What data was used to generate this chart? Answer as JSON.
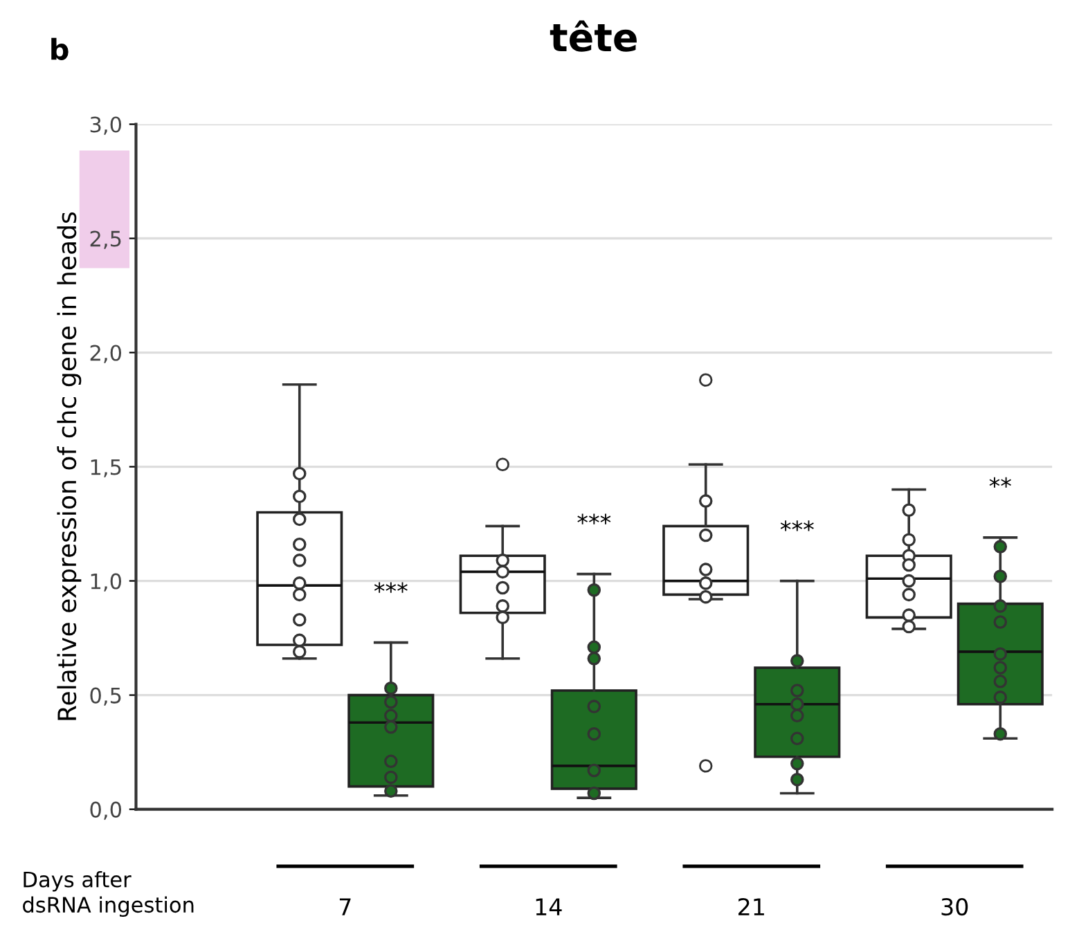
{
  "chart_data": {
    "type": "box",
    "title": "tête",
    "ylabel": "Relative expression of chc gene in heads",
    "xlabel": "Days after\ndsRNA ingestion",
    "categories": [
      "7",
      "14",
      "21",
      "30"
    ],
    "series": [
      {
        "color": "#ffffff",
        "boxes": [
          {
            "low": 0.66,
            "q1": 0.72,
            "median": 0.98,
            "q3": 1.3,
            "high": 1.86
          },
          {
            "low": 0.66,
            "q1": 0.86,
            "median": 1.04,
            "q3": 1.11,
            "high": 1.24,
            "outliers": [
              1.51
            ]
          },
          {
            "low": 0.92,
            "q1": 0.94,
            "median": 1.0,
            "q3": 1.24,
            "high": 1.51,
            "outliers": [
              1.88,
              0.19
            ]
          },
          {
            "low": 0.79,
            "q1": 0.84,
            "median": 1.01,
            "q3": 1.11,
            "high": 1.4
          }
        ]
      },
      {
        "color": "#1e6b23",
        "boxes": [
          {
            "low": 0.06,
            "q1": 0.1,
            "median": 0.38,
            "q3": 0.5,
            "high": 0.73
          },
          {
            "low": 0.05,
            "q1": 0.09,
            "median": 0.19,
            "q3": 0.52,
            "high": 1.03
          },
          {
            "low": 0.07,
            "q1": 0.23,
            "median": 0.46,
            "q3": 0.62,
            "high": 1.0
          },
          {
            "low": 0.31,
            "q1": 0.46,
            "median": 0.69,
            "q3": 0.9,
            "high": 1.19
          }
        ]
      },
      {
        "type": "scatter",
        "color": "#ffffff",
        "x": [
          "7",
          "7",
          "7",
          "7",
          "7",
          "7",
          "7",
          "7",
          "7",
          "7",
          "14",
          "14",
          "14",
          "14",
          "14",
          "21",
          "21",
          "21",
          "21",
          "21",
          "30",
          "30",
          "30",
          "30",
          "30",
          "30",
          "30",
          "30"
        ],
        "values": [
          1.47,
          1.37,
          1.27,
          1.16,
          1.09,
          0.99,
          0.94,
          0.83,
          0.74,
          0.69,
          1.09,
          1.04,
          0.97,
          0.89,
          0.84,
          1.35,
          1.2,
          1.05,
          0.99,
          0.93,
          1.31,
          1.18,
          1.11,
          1.07,
          1.0,
          0.94,
          0.85,
          0.8
        ]
      },
      {
        "type": "scatter",
        "color": "#1e6b23",
        "x": [
          "7",
          "7",
          "7",
          "7",
          "7",
          "7",
          "7",
          "14",
          "14",
          "14",
          "14",
          "14",
          "14",
          "14",
          "21",
          "21",
          "21",
          "21",
          "21",
          "21",
          "21",
          "30",
          "30",
          "30",
          "30",
          "30",
          "30",
          "30",
          "30",
          "30"
        ],
        "values": [
          0.53,
          0.47,
          0.41,
          0.36,
          0.21,
          0.14,
          0.08,
          0.96,
          0.71,
          0.66,
          0.45,
          0.33,
          0.17,
          0.07,
          0.65,
          0.52,
          0.46,
          0.41,
          0.31,
          0.2,
          0.13,
          1.15,
          1.02,
          0.89,
          0.82,
          0.68,
          0.62,
          0.56,
          0.49,
          0.33
        ]
      }
    ],
    "ylim": [
      0,
      3.0
    ],
    "yticks": [
      {
        "value": 0,
        "label": "0,0"
      },
      {
        "value": 0.5,
        "label": "0,5"
      },
      {
        "value": 1.0,
        "label": "1,0"
      },
      {
        "value": 1.5,
        "label": "1,5"
      },
      {
        "value": 2.0,
        "label": "2,0"
      },
      {
        "value": 2.5,
        "label": "2,5"
      },
      {
        "value": 3.0,
        "label": "3,0"
      }
    ],
    "grid": "y",
    "marker": "circle",
    "annotations": [
      "b",
      "***",
      "***",
      "***",
      "**"
    ]
  }
}
